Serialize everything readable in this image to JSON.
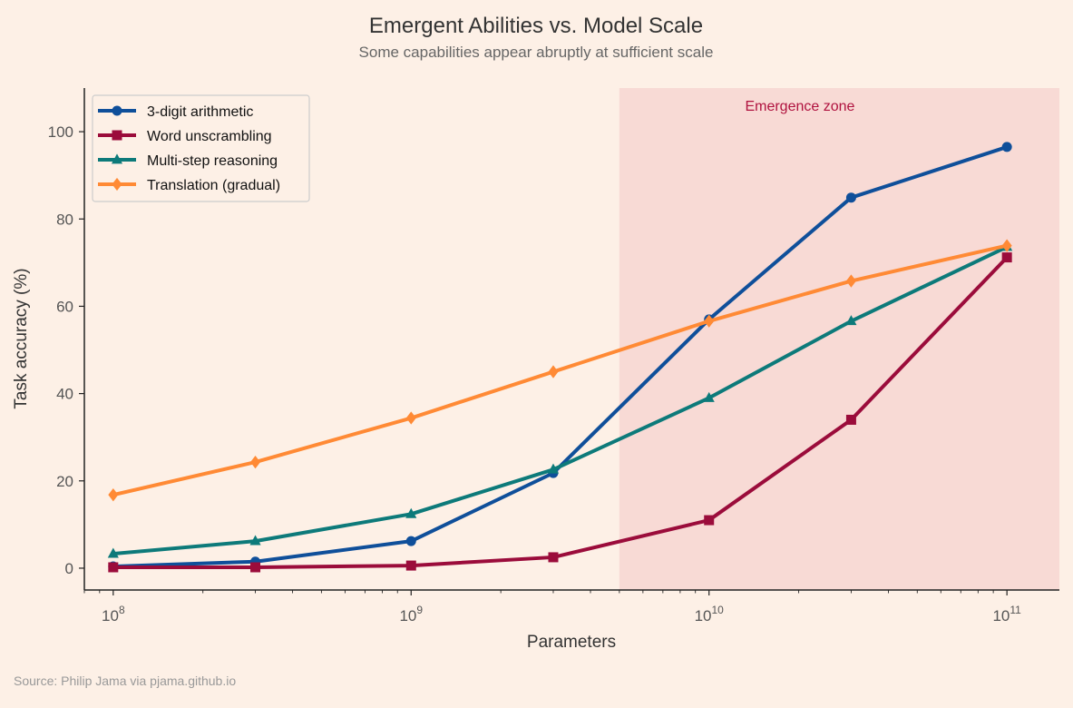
{
  "chart_data": {
    "type": "line",
    "title": "Emergent Abilities vs. Model Scale",
    "subtitle": "Some capabilities appear abruptly at sufficient scale",
    "xlabel": "Parameters",
    "ylabel": "Task accuracy (%)",
    "x_scale": "log",
    "xlim": [
      80000000.0,
      150000000000.0
    ],
    "ylim": [
      -5,
      110
    ],
    "grid": false,
    "legend_position": "top-left",
    "x": [
      100000000.0,
      300000000.0,
      1000000000.0,
      3000000000.0,
      10000000000.0,
      30000000000.0,
      100000000000.0
    ],
    "x_ticks": [
      100000000.0,
      1000000000.0,
      10000000000.0,
      100000000000.0
    ],
    "x_tick_labels": [
      {
        "base": "10",
        "exp": "8"
      },
      {
        "base": "10",
        "exp": "9"
      },
      {
        "base": "10",
        "exp": "10"
      },
      {
        "base": "10",
        "exp": "11"
      }
    ],
    "y_ticks": [
      0,
      20,
      40,
      60,
      80,
      100
    ],
    "y_tick_labels": [
      "0",
      "20",
      "40",
      "60",
      "80",
      "100"
    ],
    "series": [
      {
        "name": "3-digit arithmetic",
        "color": "#0f4f9a",
        "marker": "circle",
        "values": [
          0.4,
          1.5,
          6.2,
          21.8,
          57.0,
          84.9,
          96.5
        ]
      },
      {
        "name": "Word unscrambling",
        "color": "#9b0c3b",
        "marker": "square",
        "values": [
          0.2,
          0.2,
          0.6,
          2.5,
          11.0,
          34.0,
          71.2
        ]
      },
      {
        "name": "Multi-step reasoning",
        "color": "#0d7a7a",
        "marker": "triangle",
        "values": [
          3.3,
          6.2,
          12.4,
          22.6,
          39.0,
          56.6,
          73.6
        ]
      },
      {
        "name": "Translation (gradual)",
        "color": "#ff8a35",
        "marker": "diamond",
        "values": [
          16.8,
          24.3,
          34.4,
          45.0,
          56.6,
          65.8,
          73.9
        ]
      }
    ],
    "annotations": [
      {
        "type": "shaded-region",
        "label": "Emergence zone",
        "x_range": [
          5000000000.0,
          150000000000.0
        ],
        "color": "#f5d3cf",
        "label_color": "#b0123f"
      }
    ],
    "source": "Source: Philip Jama via pjama.github.io"
  }
}
